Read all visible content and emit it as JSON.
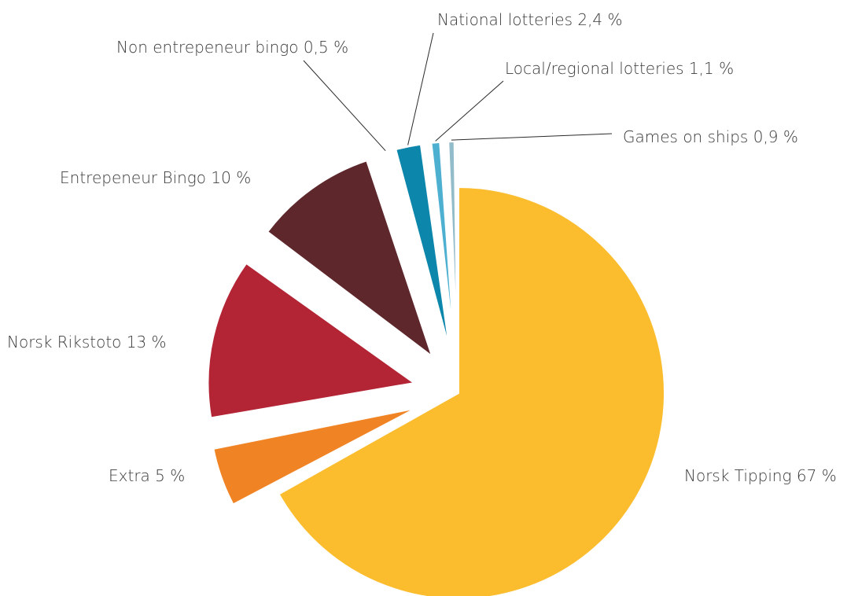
{
  "chart_data": {
    "type": "pie",
    "title": "",
    "slices": [
      {
        "label": "Norsk Tipping 67 %",
        "value": 67,
        "color": "#fbbd2e"
      },
      {
        "label": "Extra 5 %",
        "value": 5,
        "color": "#f08424"
      },
      {
        "label": "Norsk Rikstoto 13 %",
        "value": 13,
        "color": "#b32535"
      },
      {
        "label": "Entrepeneur Bingo 10 %",
        "value": 10,
        "color": "#5d272c"
      },
      {
        "label": "Non entrepeneur bingo 0,5  %",
        "value": 0.5,
        "color": "#144f75"
      },
      {
        "label": "National lotteries 2,4 %",
        "value": 2.4,
        "color": "#0c86aa"
      },
      {
        "label": "Local/regional lotteries 1,1 %",
        "value": 1.1,
        "color": "#4db0d1"
      },
      {
        "label": "Games on ships  0,9 %",
        "value": 0.9,
        "color": "#93bccb"
      }
    ]
  }
}
